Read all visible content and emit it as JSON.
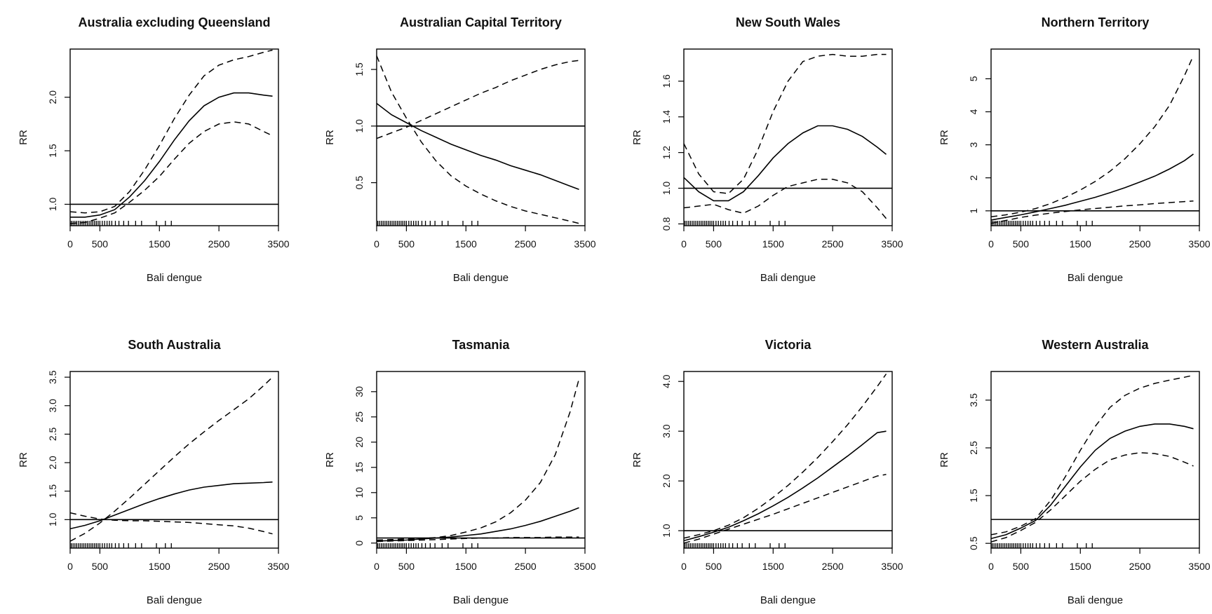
{
  "chart_data": [
    {
      "type": "line",
      "title": "Australia excluding Queensland",
      "xlabel": "Bali dengue",
      "ylabel": "RR",
      "xlim": [
        0,
        3500
      ],
      "ylim": [
        0.8,
        2.45
      ],
      "xticks": [
        0,
        500,
        1500,
        2500,
        3500
      ],
      "yticks": [
        1.0,
        1.5,
        2.0
      ],
      "ytick_labels": [
        "1.0",
        "1.5",
        "2.0"
      ],
      "reference_y": 1,
      "x": [
        0,
        250,
        500,
        750,
        1000,
        1250,
        1500,
        1750,
        2000,
        2250,
        2500,
        2750,
        3000,
        3250,
        3400
      ],
      "series": [
        {
          "name": "",
          "style": "solid",
          "values": [
            0.88,
            0.88,
            0.9,
            0.95,
            1.07,
            1.22,
            1.4,
            1.6,
            1.78,
            1.92,
            2.0,
            2.04,
            2.04,
            2.02,
            2.01
          ]
        },
        {
          "name": "",
          "style": "dashed",
          "values": [
            0.93,
            0.92,
            0.93,
            0.98,
            1.12,
            1.32,
            1.55,
            1.8,
            2.02,
            2.2,
            2.3,
            2.35,
            2.38,
            2.42,
            2.44
          ]
        },
        {
          "name": "",
          "style": "dashed",
          "values": [
            0.82,
            0.83,
            0.87,
            0.92,
            1.02,
            1.13,
            1.26,
            1.42,
            1.57,
            1.68,
            1.75,
            1.77,
            1.75,
            1.68,
            1.64
          ]
        }
      ],
      "rug": [
        20,
        50,
        80,
        110,
        140,
        170,
        200,
        230,
        260,
        290,
        320,
        350,
        380,
        410,
        440,
        470,
        500,
        540,
        580,
        620,
        660,
        700,
        760,
        820,
        900,
        980,
        1100,
        1200,
        1450,
        1600,
        1700
      ]
    },
    {
      "type": "line",
      "title": "Australian Capital Territory",
      "xlabel": "Bali dengue",
      "ylabel": "RR",
      "xlim": [
        0,
        3500
      ],
      "ylim": [
        0.12,
        1.68
      ],
      "xticks": [
        0,
        500,
        1500,
        2500,
        3500
      ],
      "yticks": [
        0.5,
        1.0,
        1.5
      ],
      "ytick_labels": [
        "0.5",
        "1.0",
        "1.5"
      ],
      "reference_y": 1,
      "x": [
        0,
        250,
        500,
        750,
        1000,
        1250,
        1500,
        1750,
        2000,
        2250,
        2500,
        2750,
        3000,
        3250,
        3400
      ],
      "series": [
        {
          "name": "",
          "style": "solid",
          "values": [
            1.2,
            1.1,
            1.03,
            0.96,
            0.9,
            0.84,
            0.79,
            0.74,
            0.7,
            0.65,
            0.61,
            0.57,
            0.52,
            0.47,
            0.44
          ]
        },
        {
          "name": "",
          "style": "dashed",
          "values": [
            1.62,
            1.3,
            1.07,
            0.86,
            0.69,
            0.56,
            0.47,
            0.4,
            0.34,
            0.29,
            0.25,
            0.22,
            0.19,
            0.16,
            0.14
          ]
        },
        {
          "name": "",
          "style": "dashed",
          "values": [
            0.89,
            0.94,
            0.99,
            1.05,
            1.11,
            1.17,
            1.23,
            1.29,
            1.34,
            1.4,
            1.45,
            1.5,
            1.54,
            1.57,
            1.58
          ]
        }
      ],
      "rug": [
        20,
        50,
        80,
        110,
        140,
        170,
        200,
        230,
        260,
        290,
        320,
        350,
        380,
        410,
        440,
        470,
        500,
        540,
        580,
        620,
        660,
        700,
        760,
        820,
        900,
        980,
        1100,
        1200,
        1450,
        1600,
        1700
      ]
    },
    {
      "type": "line",
      "title": "New South Wales",
      "xlabel": "Bali dengue",
      "ylabel": "RR",
      "xlim": [
        0,
        3500
      ],
      "ylim": [
        0.79,
        1.78
      ],
      "xticks": [
        0,
        500,
        1500,
        2500,
        3500
      ],
      "yticks": [
        0.8,
        1.0,
        1.2,
        1.4,
        1.6
      ],
      "ytick_labels": [
        "0.8",
        "1.0",
        "1.2",
        "1.4",
        "1.6"
      ],
      "reference_y": 1,
      "x": [
        0,
        250,
        500,
        750,
        1000,
        1250,
        1500,
        1750,
        2000,
        2250,
        2500,
        2750,
        3000,
        3250,
        3400
      ],
      "series": [
        {
          "name": "",
          "style": "solid",
          "values": [
            1.06,
            0.98,
            0.93,
            0.93,
            0.98,
            1.07,
            1.17,
            1.25,
            1.31,
            1.35,
            1.35,
            1.33,
            1.29,
            1.23,
            1.19
          ]
        },
        {
          "name": "",
          "style": "dashed",
          "values": [
            1.25,
            1.08,
            0.98,
            0.97,
            1.05,
            1.22,
            1.43,
            1.6,
            1.71,
            1.74,
            1.75,
            1.74,
            1.74,
            1.75,
            1.75
          ]
        },
        {
          "name": "",
          "style": "dashed",
          "values": [
            0.89,
            0.9,
            0.91,
            0.88,
            0.86,
            0.9,
            0.96,
            1.01,
            1.03,
            1.05,
            1.05,
            1.03,
            0.98,
            0.89,
            0.83
          ]
        }
      ],
      "rug": [
        20,
        50,
        80,
        110,
        140,
        170,
        200,
        230,
        260,
        290,
        320,
        350,
        380,
        410,
        440,
        470,
        500,
        540,
        580,
        620,
        660,
        700,
        760,
        820,
        900,
        980,
        1100,
        1200,
        1450,
        1600,
        1700
      ]
    },
    {
      "type": "line",
      "title": "Northern Territory",
      "xlabel": "Bali dengue",
      "ylabel": "RR",
      "xlim": [
        0,
        3500
      ],
      "ylim": [
        0.55,
        5.9
      ],
      "xticks": [
        0,
        500,
        1500,
        2500,
        3500
      ],
      "yticks": [
        1,
        2,
        3,
        4,
        5
      ],
      "ytick_labels": [
        "1",
        "2",
        "3",
        "4",
        "5"
      ],
      "reference_y": 1,
      "x": [
        0,
        250,
        500,
        750,
        1000,
        1250,
        1500,
        1750,
        2000,
        2250,
        2500,
        2750,
        3000,
        3250,
        3400
      ],
      "series": [
        {
          "name": "",
          "style": "solid",
          "values": [
            0.72,
            0.8,
            0.88,
            0.97,
            1.07,
            1.17,
            1.29,
            1.41,
            1.55,
            1.7,
            1.87,
            2.05,
            2.27,
            2.52,
            2.72
          ]
        },
        {
          "name": "",
          "style": "dashed",
          "values": [
            0.82,
            0.88,
            0.96,
            1.07,
            1.22,
            1.41,
            1.63,
            1.89,
            2.2,
            2.58,
            3.03,
            3.55,
            4.2,
            5.1,
            5.7
          ]
        },
        {
          "name": "",
          "style": "dashed",
          "values": [
            0.62,
            0.71,
            0.8,
            0.87,
            0.93,
            0.98,
            1.03,
            1.07,
            1.11,
            1.15,
            1.18,
            1.22,
            1.25,
            1.28,
            1.3
          ]
        }
      ],
      "rug": [
        20,
        50,
        80,
        110,
        140,
        170,
        200,
        230,
        260,
        290,
        320,
        350,
        380,
        410,
        440,
        470,
        500,
        540,
        580,
        620,
        660,
        700,
        760,
        820,
        900,
        980,
        1100,
        1200,
        1450,
        1600,
        1700
      ]
    },
    {
      "type": "line",
      "title": "South Australia",
      "xlabel": "Bali dengue",
      "ylabel": "RR",
      "xlim": [
        0,
        3500
      ],
      "ylim": [
        0.5,
        3.6
      ],
      "xticks": [
        0,
        500,
        1500,
        2500,
        3500
      ],
      "yticks": [
        1.0,
        1.5,
        2.0,
        2.5,
        3.0,
        3.5
      ],
      "ytick_labels": [
        "1.0",
        "1.5",
        "2.0",
        "2.5",
        "3.0",
        "3.5"
      ],
      "reference_y": 1,
      "x": [
        0,
        250,
        500,
        750,
        1000,
        1250,
        1500,
        1750,
        2000,
        2250,
        2500,
        2750,
        3000,
        3250,
        3400
      ],
      "series": [
        {
          "name": "",
          "style": "solid",
          "values": [
            0.84,
            0.9,
            0.98,
            1.08,
            1.18,
            1.28,
            1.37,
            1.45,
            1.52,
            1.57,
            1.6,
            1.63,
            1.64,
            1.65,
            1.66
          ]
        },
        {
          "name": "",
          "style": "dashed",
          "values": [
            0.62,
            0.76,
            0.94,
            1.15,
            1.38,
            1.62,
            1.86,
            2.1,
            2.33,
            2.54,
            2.74,
            2.93,
            3.12,
            3.35,
            3.5
          ]
        },
        {
          "name": "",
          "style": "dashed",
          "values": [
            1.12,
            1.06,
            1.01,
            0.99,
            0.98,
            0.98,
            0.97,
            0.96,
            0.95,
            0.93,
            0.91,
            0.89,
            0.85,
            0.79,
            0.75
          ]
        }
      ],
      "rug": [
        20,
        50,
        80,
        110,
        140,
        170,
        200,
        230,
        260,
        290,
        320,
        350,
        380,
        410,
        440,
        470,
        500,
        540,
        580,
        620,
        660,
        700,
        760,
        820,
        900,
        980,
        1100,
        1200,
        1450,
        1600,
        1700
      ]
    },
    {
      "type": "line",
      "title": "Tasmania",
      "xlabel": "Bali dengue",
      "ylabel": "RR",
      "xlim": [
        0,
        3500
      ],
      "ylim": [
        -1,
        34
      ],
      "xticks": [
        0,
        500,
        1500,
        2500,
        3500
      ],
      "yticks": [
        0,
        5,
        10,
        15,
        20,
        25,
        30
      ],
      "ytick_labels": [
        "0",
        "5",
        "10",
        "15",
        "20",
        "25",
        "30"
      ],
      "reference_y": 1,
      "x": [
        0,
        250,
        500,
        750,
        1000,
        1250,
        1500,
        1750,
        2000,
        2250,
        2500,
        2750,
        3000,
        3250,
        3400
      ],
      "series": [
        {
          "name": "",
          "style": "solid",
          "values": [
            0.4,
            0.5,
            0.6,
            0.8,
            1.0,
            1.2,
            1.5,
            1.8,
            2.3,
            2.8,
            3.5,
            4.3,
            5.3,
            6.3,
            7.0
          ]
        },
        {
          "name": "",
          "style": "dashed",
          "values": [
            0.6,
            0.7,
            0.8,
            0.9,
            1.1,
            1.5,
            2.2,
            3.0,
            4.2,
            6.0,
            8.5,
            12.0,
            17.5,
            26.0,
            32.5
          ]
        },
        {
          "name": "",
          "style": "dashed",
          "values": [
            0.3,
            0.4,
            0.5,
            0.6,
            0.7,
            0.8,
            0.9,
            1.0,
            1.0,
            1.1,
            1.1,
            1.1,
            1.2,
            1.2,
            1.2
          ]
        }
      ],
      "rug": [
        20,
        50,
        80,
        110,
        140,
        170,
        200,
        230,
        260,
        290,
        320,
        350,
        380,
        410,
        440,
        470,
        500,
        540,
        580,
        620,
        660,
        700,
        760,
        820,
        900,
        980,
        1100,
        1200,
        1450,
        1600,
        1700
      ]
    },
    {
      "type": "line",
      "title": "Victoria",
      "xlabel": "Bali dengue",
      "ylabel": "RR",
      "xlim": [
        0,
        3500
      ],
      "ylim": [
        0.65,
        4.2
      ],
      "xticks": [
        0,
        500,
        1500,
        2500,
        3500
      ],
      "yticks": [
        1.0,
        2.0,
        3.0,
        4.0
      ],
      "ytick_labels": [
        "1.0",
        "2.0",
        "3.0",
        "4.0"
      ],
      "reference_y": 1,
      "x": [
        0,
        250,
        500,
        750,
        1000,
        1250,
        1500,
        1750,
        2000,
        2250,
        2500,
        2750,
        3000,
        3250,
        3400
      ],
      "series": [
        {
          "name": "",
          "style": "solid",
          "values": [
            0.8,
            0.88,
            0.97,
            1.07,
            1.2,
            1.34,
            1.5,
            1.67,
            1.86,
            2.06,
            2.28,
            2.5,
            2.73,
            2.97,
            3.0
          ]
        },
        {
          "name": "",
          "style": "dashed",
          "values": [
            0.85,
            0.92,
            1.0,
            1.11,
            1.26,
            1.45,
            1.67,
            1.91,
            2.18,
            2.47,
            2.79,
            3.13,
            3.5,
            3.9,
            4.15
          ]
        },
        {
          "name": "",
          "style": "dashed",
          "values": [
            0.75,
            0.83,
            0.93,
            1.03,
            1.13,
            1.23,
            1.33,
            1.44,
            1.55,
            1.66,
            1.77,
            1.88,
            1.99,
            2.1,
            2.13
          ]
        }
      ],
      "rug": [
        20,
        50,
        80,
        110,
        140,
        170,
        200,
        230,
        260,
        290,
        320,
        350,
        380,
        410,
        440,
        470,
        500,
        540,
        580,
        620,
        660,
        700,
        760,
        820,
        900,
        980,
        1100,
        1200,
        1450,
        1600,
        1700
      ]
    },
    {
      "type": "line",
      "title": "Western Australia",
      "xlabel": "Bali dengue",
      "ylabel": "RR",
      "xlim": [
        0,
        3500
      ],
      "ylim": [
        0.4,
        4.1
      ],
      "xticks": [
        0,
        500,
        1500,
        2500,
        3500
      ],
      "yticks": [
        0.5,
        1.5,
        2.5,
        3.5
      ],
      "ytick_labels": [
        "0.5",
        "1.5",
        "2.5",
        "3.5"
      ],
      "reference_y": 1,
      "x": [
        0,
        250,
        500,
        750,
        1000,
        1250,
        1500,
        1750,
        2000,
        2250,
        2500,
        2750,
        3000,
        3250,
        3400
      ],
      "series": [
        {
          "name": "",
          "style": "solid",
          "values": [
            0.6,
            0.68,
            0.82,
            0.98,
            1.3,
            1.7,
            2.1,
            2.45,
            2.7,
            2.85,
            2.95,
            3.0,
            3.0,
            2.95,
            2.9
          ]
        },
        {
          "name": "",
          "style": "dashed",
          "values": [
            0.68,
            0.74,
            0.86,
            1.02,
            1.4,
            1.9,
            2.45,
            2.95,
            3.35,
            3.6,
            3.75,
            3.85,
            3.92,
            3.98,
            4.02
          ]
        },
        {
          "name": "",
          "style": "dashed",
          "values": [
            0.53,
            0.62,
            0.77,
            0.94,
            1.2,
            1.5,
            1.8,
            2.05,
            2.25,
            2.35,
            2.4,
            2.38,
            2.32,
            2.2,
            2.12
          ]
        }
      ],
      "rug": [
        20,
        50,
        80,
        110,
        140,
        170,
        200,
        230,
        260,
        290,
        320,
        350,
        380,
        410,
        440,
        470,
        500,
        540,
        580,
        620,
        660,
        700,
        760,
        820,
        900,
        980,
        1100,
        1200,
        1450,
        1600,
        1700
      ]
    }
  ]
}
